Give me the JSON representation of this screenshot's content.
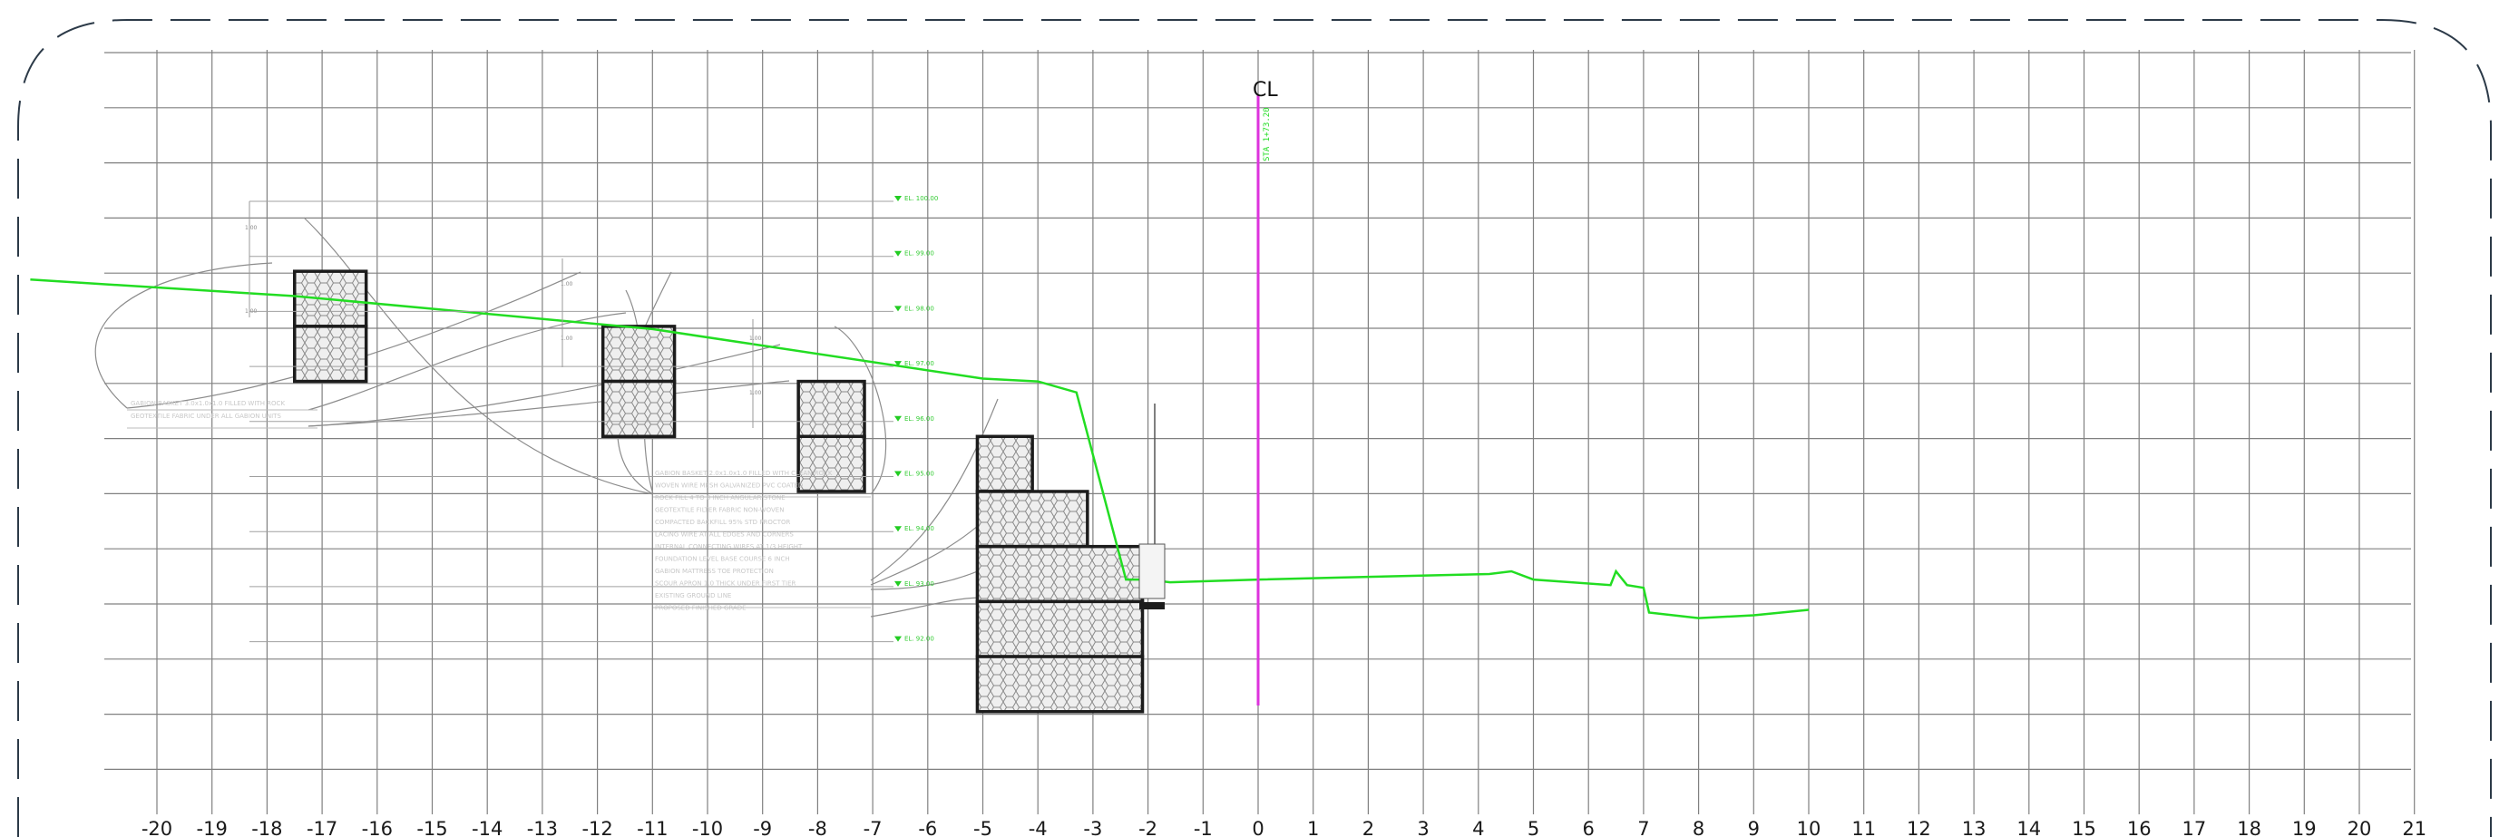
{
  "x_axis": {
    "ticks": [
      "-20",
      "-19",
      "-18",
      "-17",
      "-16",
      "-15",
      "-14",
      "-13",
      "-12",
      "-11",
      "-10",
      "-9",
      "-8",
      "-7",
      "-6",
      "-5",
      "-4",
      "-3",
      "-2",
      "-1",
      "0",
      "1",
      "2",
      "3",
      "4",
      "5",
      "6",
      "7",
      "8",
      "9",
      "10",
      "11",
      "12",
      "13",
      "14",
      "15",
      "16",
      "17",
      "18",
      "19",
      "20",
      "21"
    ],
    "range": [
      -21,
      21
    ]
  },
  "centerline": {
    "symbol": "CL",
    "station_label": "STA 1+73.20"
  },
  "colors": {
    "grid": "#808080",
    "ground_profile": "#22dd22",
    "centerline": "#dd33dd",
    "gabion_outline": "#1c1c1c",
    "gabion_fill": "#ededed",
    "viewport_border": "#2c3a48",
    "leader": "#8c8c8c"
  },
  "notes": {
    "left_upper": [
      "GABION BASKET 3.0x1.0x1.0 FILLED WITH ROCK",
      "GEOTEXTILE FABRIC UNDER ALL GABION UNITS"
    ],
    "center": [
      "GABION BASKET 2.0x1.0x1.0 FILLED WITH CLEAN ROCK",
      "WOVEN WIRE MESH GALVANIZED PVC COATED",
      "ROCK FILL 4 TO 8 INCH ANGULAR STONE",
      "GEOTEXTILE FILTER FABRIC NON-WOVEN",
      "COMPACTED BACKFILL 95% STD PROCTOR",
      "LACING WIRE AT ALL EDGES AND CORNERS",
      "INTERNAL CONNECTING WIRES AT 1/3 HEIGHT",
      "FOUNDATION LEVEL BASE COURSE 6 INCH",
      "GABION MATTRESS TOE PROTECTION",
      "SCOUR APRON 1.0 THICK UNDER FIRST TIER",
      "EXISTING GROUND LINE",
      "PROPOSED FINISHED GRADE"
    ],
    "elevations": [
      "EL. 100.00",
      "EL. 99.00",
      "EL. 98.00",
      "EL. 97.00",
      "EL. 96.00",
      "EL. 95.00",
      "EL. 94.00",
      "EL. 93.00",
      "EL. 92.00"
    ],
    "dims": [
      "1.00",
      "1.00",
      "1.00",
      "1.00",
      "1.00",
      "1.00"
    ]
  },
  "ground_profile": [
    [
      -22.3,
      6.75
    ],
    [
      -17.5,
      6.45
    ],
    [
      -11,
      5.85
    ],
    [
      -5,
      4.95
    ],
    [
      -4,
      4.9
    ],
    [
      -3.3,
      4.7
    ],
    [
      -2.4,
      1.3
    ],
    [
      -2,
      1.3
    ],
    [
      -1.6,
      1.25
    ],
    [
      0,
      1.3
    ],
    [
      2,
      1.35
    ],
    [
      4.2,
      1.4
    ],
    [
      4.6,
      1.45
    ],
    [
      5,
      1.3
    ],
    [
      6.4,
      1.2
    ],
    [
      6.5,
      1.45
    ],
    [
      6.7,
      1.2
    ],
    [
      7,
      1.15
    ],
    [
      7.1,
      0.7
    ],
    [
      8,
      0.6
    ],
    [
      9,
      0.65
    ],
    [
      10,
      0.75
    ]
  ],
  "gabions": [
    {
      "x": -17.5,
      "top": 6.9,
      "rows": [
        [
          0,
          1.3
        ],
        [
          0,
          1.3
        ]
      ]
    },
    {
      "x": -11.9,
      "top": 5.9,
      "rows": [
        [
          0,
          1.3
        ],
        [
          0,
          1.3
        ]
      ]
    },
    {
      "x": -8.35,
      "top": 4.9,
      "rows": [
        [
          0,
          1.2
        ],
        [
          0,
          1.2
        ]
      ]
    },
    {
      "x": -5.1,
      "top": 3.9,
      "rows": [
        [
          0,
          1.0
        ],
        [
          0,
          2.0
        ],
        [
          0,
          3.0
        ],
        [
          0,
          3.0
        ],
        [
          0,
          3.0
        ]
      ]
    }
  ]
}
